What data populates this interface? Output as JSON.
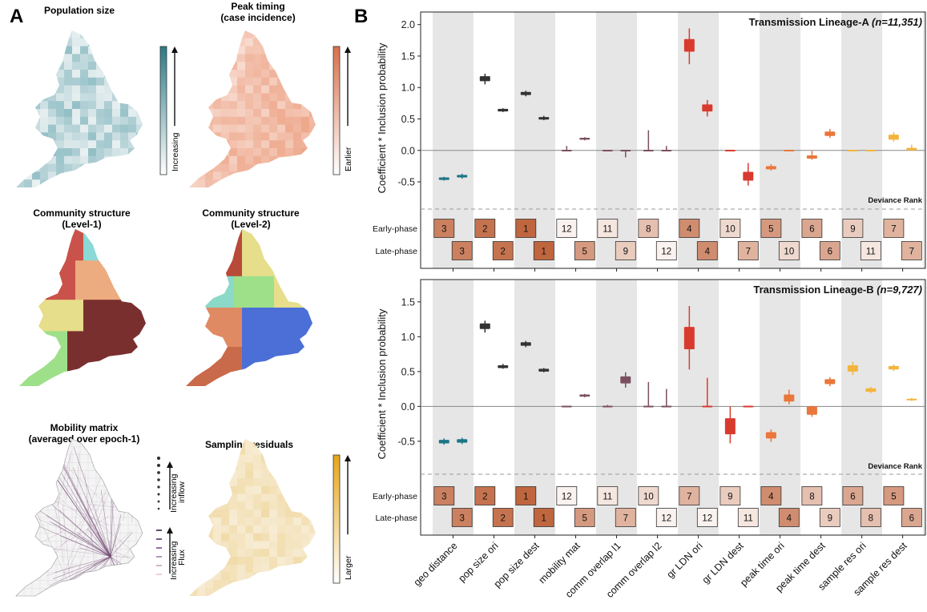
{
  "panel_labels": {
    "a": "A",
    "b": "B"
  },
  "maps": [
    {
      "title_lines": [
        "Population size"
      ],
      "legend_label": "Increasing",
      "legend_color": "#2b7a86",
      "fill_low": "#e9f0f1",
      "fill_high": "#4b96a2"
    },
    {
      "title_lines": [
        "Peak timing",
        "(case incidence)"
      ],
      "legend_label": "Earlier",
      "legend_color": "#d8704b",
      "fill_low": "#fae6de",
      "fill_high": "#eda487"
    },
    {
      "title_lines": [
        "Community structure",
        "(Level-1)"
      ],
      "legend_label": "",
      "legend_color": "",
      "fill_low": "#ecac80",
      "fill_high": "#7a2f2f"
    },
    {
      "title_lines": [
        "Community structure",
        "(Level-2)"
      ],
      "legend_label": "",
      "legend_color": "",
      "fill_low": "#e08a63",
      "fill_high": "#4b6fd6"
    },
    {
      "title_lines": [
        "Mobility matrix",
        "(averaged over epoch-1)"
      ],
      "legend_label": "",
      "legend_color": "#5a2d5a",
      "fill_low": "#f4f4f4",
      "fill_high": "#f4f4f4"
    },
    {
      "title_lines": [
        "Sampling residuals"
      ],
      "legend_label": "Larger",
      "legend_color": "#e6a516",
      "fill_low": "#f7ecd4",
      "fill_high": "#eccd86"
    }
  ],
  "mobility_legend": {
    "inflow_label_1": "Increasing",
    "inflow_label_2": "inflow",
    "flux_label_1": "Increasing",
    "flux_label_2": "Flux"
  },
  "chart_data": [
    {
      "type": "boxplot",
      "title_main": "Transmission Lineage-A ",
      "title_n": "(n=11,351)",
      "ylabel": "Coefficient * Inclusion probability",
      "ylim": [
        -0.92,
        2.2
      ],
      "yticks": [
        -0.5,
        0.0,
        0.5,
        1.0,
        1.5,
        2.0
      ],
      "ytick_labels": [
        "-0.5",
        "0.0",
        "0.5",
        "1.0",
        "1.5",
        "2.0"
      ],
      "categories": [
        "geo distance",
        "pop size ori",
        "pop size dest",
        "mobility mat",
        "comm overlap l1",
        "comm overlap l2",
        "gr LDN ori",
        "gr LDN dest",
        "peak time ori",
        "peak time dest",
        "sample res ori",
        "sample res dest"
      ],
      "colors": [
        "#1b7686",
        "#333333",
        "#333333",
        "#7a5060",
        "#7a5060",
        "#7a5060",
        "#d93a2e",
        "#d93a2e",
        "#e9763a",
        "#e9763a",
        "#f2b53c",
        "#f2b53c"
      ],
      "series": [
        {
          "name": "Early-phase",
          "boxes": [
            {
              "q1": -0.47,
              "q3": -0.43,
              "whislo": -0.48,
              "whishi": -0.42
            },
            {
              "q1": 1.1,
              "q3": 1.18,
              "whislo": 1.05,
              "whishi": 1.22
            },
            {
              "q1": 0.88,
              "q3": 0.93,
              "whislo": 0.86,
              "whishi": 0.95
            },
            {
              "q1": 0.0,
              "q3": 0.01,
              "whislo": -0.01,
              "whishi": 0.07
            },
            {
              "q1": 0.0,
              "q3": 0.01,
              "whislo": -0.01,
              "whishi": 0.01
            },
            {
              "q1": 0.0,
              "q3": 0.01,
              "whislo": -0.01,
              "whishi": 0.32
            },
            {
              "q1": 1.57,
              "q3": 1.77,
              "whislo": 1.37,
              "whishi": 1.94
            },
            {
              "q1": 0.0,
              "q3": 0.01,
              "whislo": -0.01,
              "whishi": 0.01
            },
            {
              "q1": -0.3,
              "q3": -0.25,
              "whislo": -0.32,
              "whishi": -0.22
            },
            {
              "q1": -0.13,
              "q3": -0.08,
              "whislo": -0.15,
              "whishi": -0.01
            },
            {
              "q1": 0.0,
              "q3": 0.01,
              "whislo": -0.01,
              "whishi": 0.01
            },
            {
              "q1": 0.17,
              "q3": 0.25,
              "whislo": 0.14,
              "whishi": 0.29
            }
          ]
        },
        {
          "name": "Late-phase",
          "boxes": [
            {
              "q1": -0.43,
              "q3": -0.39,
              "whislo": -0.45,
              "whishi": -0.37
            },
            {
              "q1": 0.62,
              "q3": 0.66,
              "whislo": 0.61,
              "whishi": 0.67
            },
            {
              "q1": 0.49,
              "q3": 0.53,
              "whislo": 0.48,
              "whishi": 0.55
            },
            {
              "q1": 0.17,
              "q3": 0.2,
              "whislo": 0.16,
              "whishi": 0.21
            },
            {
              "q1": 0.0,
              "q3": 0.01,
              "whislo": -0.11,
              "whishi": 0.01
            },
            {
              "q1": 0.0,
              "q3": 0.01,
              "whislo": -0.01,
              "whishi": 0.07
            },
            {
              "q1": 0.62,
              "q3": 0.73,
              "whislo": 0.54,
              "whishi": 0.8
            },
            {
              "q1": -0.48,
              "q3": -0.34,
              "whislo": -0.56,
              "whishi": -0.2
            },
            {
              "q1": 0.0,
              "q3": 0.01,
              "whislo": -0.01,
              "whishi": 0.01
            },
            {
              "q1": 0.23,
              "q3": 0.3,
              "whislo": 0.2,
              "whishi": 0.34
            },
            {
              "q1": 0.0,
              "q3": 0.01,
              "whislo": -0.01,
              "whishi": 0.01
            },
            {
              "q1": 0.0,
              "q3": 0.04,
              "whislo": -0.01,
              "whishi": 0.09
            }
          ]
        }
      ],
      "deviance_label": "Deviance Rank",
      "rank_rows": [
        {
          "label": "Early-phase",
          "ranks": [
            3,
            2,
            1,
            12,
            11,
            8,
            4,
            10,
            5,
            6,
            9,
            7
          ]
        },
        {
          "label": "Late-phase",
          "ranks": [
            3,
            2,
            1,
            5,
            9,
            12,
            4,
            7,
            10,
            6,
            11,
            7
          ]
        }
      ]
    },
    {
      "type": "boxplot",
      "title_main": "Transmission Lineage-B ",
      "title_n": "(n=9,727)",
      "ylabel": "Coefficient * Inclusion probability",
      "ylim": [
        -0.95,
        1.82
      ],
      "yticks": [
        -0.5,
        0.0,
        0.5,
        1.0,
        1.5
      ],
      "ytick_labels": [
        "-0.5",
        "0.0",
        "0.5",
        "1.0",
        "1.5"
      ],
      "categories": [
        "geo distance",
        "pop size ori",
        "pop size dest",
        "mobility mat",
        "comm overlap l1",
        "comm overlap l2",
        "gr LDN ori",
        "gr LDN dest",
        "peak time ori",
        "peak time dest",
        "sample res ori",
        "sample res dest"
      ],
      "colors": [
        "#1b7686",
        "#333333",
        "#333333",
        "#7a5060",
        "#7a5060",
        "#7a5060",
        "#d93a2e",
        "#d93a2e",
        "#e9763a",
        "#e9763a",
        "#f2b53c",
        "#f2b53c"
      ],
      "series": [
        {
          "name": "Early-phase",
          "boxes": [
            {
              "q1": -0.53,
              "q3": -0.48,
              "whislo": -0.55,
              "whishi": -0.46
            },
            {
              "q1": 1.11,
              "q3": 1.19,
              "whislo": 1.06,
              "whishi": 1.23
            },
            {
              "q1": 0.87,
              "q3": 0.92,
              "whislo": 0.85,
              "whishi": 0.94
            },
            {
              "q1": 0.0,
              "q3": 0.01,
              "whislo": -0.01,
              "whishi": 0.01
            },
            {
              "q1": 0.0,
              "q3": 0.01,
              "whislo": -0.01,
              "whishi": 0.02
            },
            {
              "q1": 0.0,
              "q3": 0.01,
              "whislo": -0.01,
              "whishi": 0.35
            },
            {
              "q1": 0.82,
              "q3": 1.14,
              "whislo": 0.53,
              "whishi": 1.44
            },
            {
              "q1": -0.4,
              "q3": -0.17,
              "whislo": -0.53,
              "whishi": 0.0
            },
            {
              "q1": -0.46,
              "q3": -0.37,
              "whislo": -0.51,
              "whishi": -0.33
            },
            {
              "q1": -0.12,
              "q3": 0.0,
              "whislo": -0.15,
              "whishi": 0.01
            },
            {
              "q1": 0.5,
              "q3": 0.59,
              "whislo": 0.45,
              "whishi": 0.64
            },
            {
              "q1": 0.53,
              "q3": 0.58,
              "whislo": 0.51,
              "whishi": 0.6
            }
          ]
        },
        {
          "name": "Late-phase",
          "boxes": [
            {
              "q1": -0.52,
              "q3": -0.47,
              "whislo": -0.54,
              "whishi": -0.45
            },
            {
              "q1": 0.55,
              "q3": 0.59,
              "whislo": 0.54,
              "whishi": 0.61
            },
            {
              "q1": 0.5,
              "q3": 0.54,
              "whislo": 0.49,
              "whishi": 0.55
            },
            {
              "q1": 0.14,
              "q3": 0.17,
              "whislo": 0.13,
              "whishi": 0.18
            },
            {
              "q1": 0.33,
              "q3": 0.43,
              "whislo": 0.27,
              "whishi": 0.49
            },
            {
              "q1": 0.0,
              "q3": 0.01,
              "whislo": -0.01,
              "whishi": 0.25
            },
            {
              "q1": 0.0,
              "q3": 0.01,
              "whislo": -0.01,
              "whishi": 0.41
            },
            {
              "q1": 0.0,
              "q3": 0.01,
              "whislo": -0.01,
              "whishi": 0.01
            },
            {
              "q1": 0.07,
              "q3": 0.17,
              "whislo": 0.03,
              "whishi": 0.24
            },
            {
              "q1": 0.32,
              "q3": 0.39,
              "whislo": 0.29,
              "whishi": 0.42
            },
            {
              "q1": 0.21,
              "q3": 0.26,
              "whislo": 0.19,
              "whishi": 0.28
            },
            {
              "q1": 0.09,
              "q3": 0.11,
              "whislo": 0.08,
              "whishi": 0.12
            }
          ]
        }
      ],
      "deviance_label": "Deviance Rank",
      "rank_rows": [
        {
          "label": "Early-phase",
          "ranks": [
            3,
            2,
            1,
            12,
            11,
            10,
            7,
            9,
            4,
            8,
            6,
            5
          ]
        },
        {
          "label": "Late-phase",
          "ranks": [
            3,
            2,
            1,
            5,
            7,
            12,
            12,
            11,
            4,
            9,
            8,
            6
          ]
        }
      ]
    }
  ]
}
